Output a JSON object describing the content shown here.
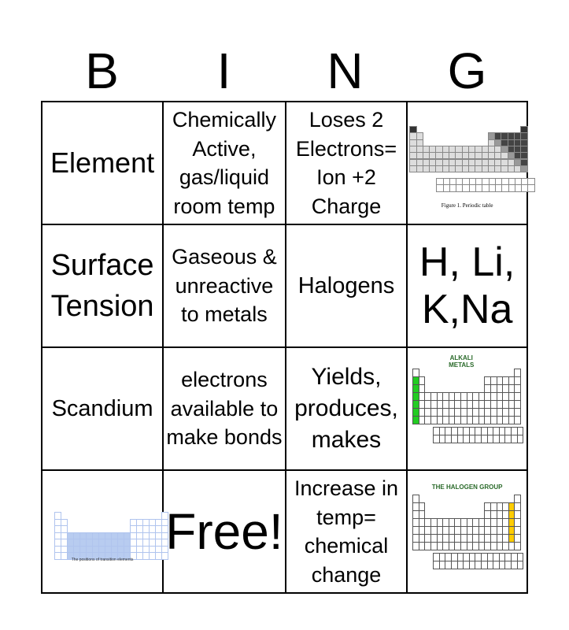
{
  "header": [
    "B",
    "I",
    "N",
    "G"
  ],
  "cells": [
    [
      "Element",
      "Chemically Active, gas/liquid room temp",
      "Loses 2 Electrons= Ion +2 Charge",
      {
        "image": "periodic-table-metals-nonmetals",
        "caption": "Figure 1. Periodic table"
      }
    ],
    [
      "Surface Tension",
      "Gaseous & unreactive to metals",
      "Halogens",
      "H, Li, K,Na"
    ],
    [
      "Scandium",
      "electrons available to make bonds",
      "Yields, produces, makes",
      {
        "image": "alkali-metals-table",
        "caption": "ALKALI METALS",
        "highlight": "#22cc22"
      }
    ],
    [
      {
        "image": "transition-elements-table",
        "caption": "The positions of transition elements",
        "highlight": "#b8ccf0"
      },
      "Free!",
      "Increase in temp= chemical change",
      {
        "image": "halogen-group-table",
        "caption": "THE HALOGEN GROUP",
        "highlight": "#ffcc00"
      }
    ]
  ]
}
